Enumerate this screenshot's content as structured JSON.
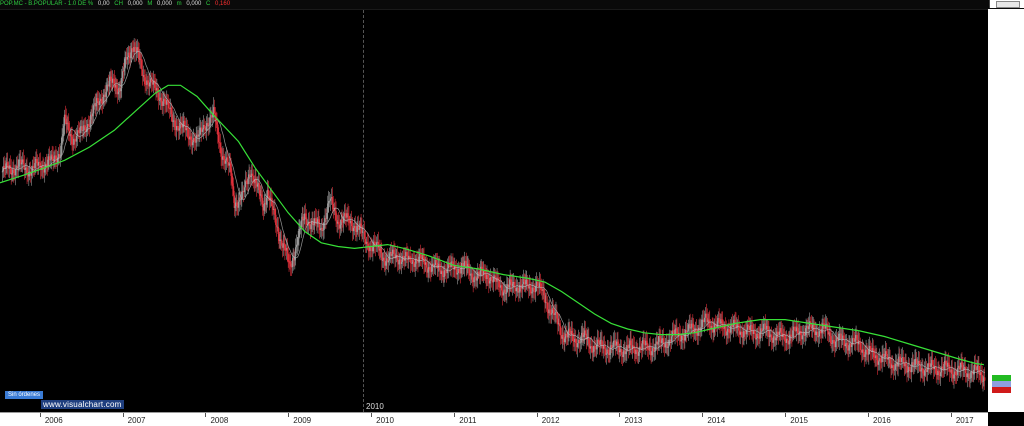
{
  "header": {
    "segments": [
      {
        "text": "POP.MC - B.POPULAR - 1.0 DE %",
        "color": "#2ecc40"
      },
      {
        "text": "0,00",
        "color": "#dddddd"
      },
      {
        "text": "CH",
        "color": "#2ecc40"
      },
      {
        "text": "0,000",
        "color": "#dddddd"
      },
      {
        "text": "M",
        "color": "#2ecc40"
      },
      {
        "text": "0,000",
        "color": "#dddddd"
      },
      {
        "text": "m",
        "color": "#2ecc40"
      },
      {
        "text": "0,000",
        "color": "#dddddd"
      },
      {
        "text": "C",
        "color": "#2ecc40"
      },
      {
        "text": "0,160",
        "color": "#ff3030"
      }
    ]
  },
  "orders_label": "Sin órdenes",
  "watermark": "www.visualchart.com",
  "cursor_label": "2010",
  "colors": {
    "up_candle": "#9a9a9a",
    "down_candle": "#e0303a",
    "ma_long": "#37e037",
    "ma_short": "#bcbcbc",
    "axis_badge_green": "#22bb22",
    "axis_badge_blue": "#8f9fe0",
    "axis_badge_red": "#d01a1a"
  },
  "chart_data": {
    "type": "line",
    "title": "POP.MC - B.POPULAR",
    "x_labels": [
      "2006",
      "2007",
      "2008",
      "2009",
      "2010",
      "2011",
      "2012",
      "2013",
      "2014",
      "2015",
      "2016",
      "2017"
    ],
    "xlim": [
      2005.52,
      2017.45
    ],
    "ylim": [
      0,
      100
    ],
    "series": [
      {
        "kind": "price",
        "x": [
          2005.55,
          2005.75,
          2005.9,
          2006.05,
          2006.15,
          2006.25,
          2006.3,
          2006.4,
          2006.5,
          2006.6,
          2006.7,
          2006.8,
          2006.9,
          2006.97,
          2007.05,
          2007.12,
          2007.18,
          2007.25,
          2007.35,
          2007.5,
          2007.6,
          2007.75,
          2007.9,
          2008.0,
          2008.1,
          2008.2,
          2008.3,
          2008.35,
          2008.45,
          2008.55,
          2008.6,
          2008.7,
          2008.75,
          2008.85,
          2008.95,
          2009.02,
          2009.1,
          2009.2,
          2009.3,
          2009.4,
          2009.5,
          2009.6,
          2009.7,
          2009.8,
          2009.9,
          2010.0,
          2010.1,
          2010.2,
          2010.3,
          2010.4,
          2010.5,
          2010.6,
          2010.7,
          2010.8,
          2010.9,
          2011.0,
          2011.1,
          2011.2,
          2011.3,
          2011.4,
          2011.5,
          2011.6,
          2011.7,
          2011.8,
          2011.9,
          2012.0,
          2012.1,
          2012.2,
          2012.3,
          2012.4,
          2012.45,
          2012.55,
          2012.65,
          2012.8,
          2012.95,
          2013.1,
          2013.2,
          2013.35,
          2013.5,
          2013.65,
          2013.8,
          2013.95,
          2014.05,
          2014.15,
          2014.3,
          2014.45,
          2014.6,
          2014.75,
          2014.9,
          2015.05,
          2015.2,
          2015.35,
          2015.5,
          2015.6,
          2015.75,
          2015.9,
          2016.0,
          2016.15,
          2016.3,
          2016.45,
          2016.6,
          2016.75,
          2016.9,
          2017.05,
          2017.2,
          2017.3,
          2017.38,
          2017.42
        ],
        "values": [
          62,
          63.5,
          62.5,
          64,
          64.5,
          68,
          75,
          71,
          72,
          76,
          80,
          84,
          86,
          84,
          92,
          96,
          93,
          88,
          85,
          81,
          76,
          73,
          70,
          75,
          77,
          67,
          62,
          54,
          55,
          63,
          59,
          53,
          57,
          48,
          42,
          36,
          43,
          50,
          48,
          47,
          54,
          49,
          49,
          48,
          45,
          42,
          41,
          38,
          40,
          38,
          39,
          38,
          37,
          36,
          36,
          36,
          37,
          35,
          34,
          35,
          32,
          31,
          31,
          32,
          31,
          32,
          28,
          24,
          19,
          18,
          17,
          18,
          16,
          15,
          15,
          14.5,
          15,
          15,
          16,
          18,
          19,
          20.5,
          22,
          21,
          20.5,
          20,
          19,
          19.5,
          18,
          18,
          19.5,
          20,
          19.5,
          17,
          16.5,
          16,
          13.5,
          12.5,
          11,
          10.5,
          10,
          9.5,
          9.5,
          9,
          8.8,
          8.6,
          8,
          7.2
        ]
      },
      {
        "kind": "moving_average_long",
        "x": [
          2005.52,
          2005.8,
          2006.0,
          2006.3,
          2006.6,
          2006.9,
          2007.2,
          2007.4,
          2007.55,
          2007.7,
          2007.9,
          2008.1,
          2008.4,
          2008.6,
          2008.8,
          2009.0,
          2009.2,
          2009.4,
          2009.6,
          2009.8,
          2010.0,
          2010.2,
          2010.4,
          2010.7,
          2011.0,
          2011.3,
          2011.6,
          2011.9,
          2012.1,
          2012.3,
          2012.5,
          2012.7,
          2012.9,
          2013.1,
          2013.3,
          2013.5,
          2013.7,
          2013.9,
          2014.1,
          2014.4,
          2014.7,
          2015.0,
          2015.3,
          2015.6,
          2015.9,
          2016.2,
          2016.5,
          2016.8,
          2017.1,
          2017.3,
          2017.4
        ],
        "values": [
          59,
          61,
          62.5,
          65,
          68.5,
          73,
          79,
          83,
          85,
          85,
          82,
          77,
          70,
          63,
          57,
          51,
          46,
          43,
          42,
          41.5,
          42,
          42.5,
          41.5,
          39.5,
          37,
          36,
          34.5,
          33.5,
          32.5,
          30,
          27,
          24,
          21.5,
          20,
          19,
          18.5,
          18.5,
          19,
          20,
          21.5,
          22.5,
          22.5,
          21.5,
          20.5,
          19.5,
          18,
          16,
          14,
          12,
          10.8,
          10.5
        ]
      }
    ]
  }
}
